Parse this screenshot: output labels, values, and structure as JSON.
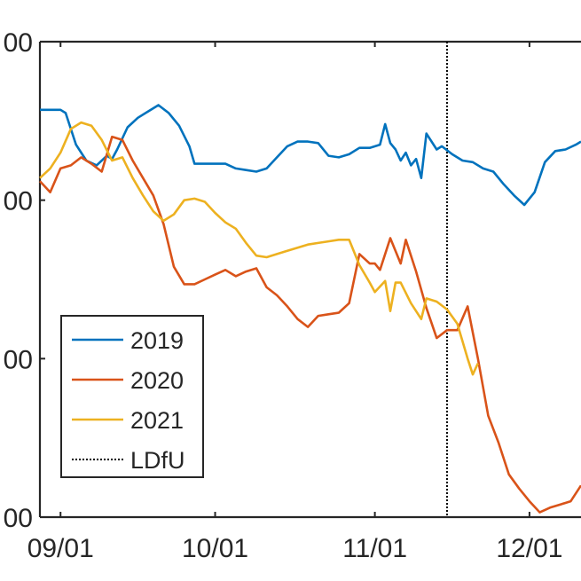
{
  "chart_data": {
    "type": "line",
    "x_tick_labels": [
      "09/01",
      "10/01",
      "11/01",
      "12/01"
    ],
    "x_tick_dates": [
      "2000-09-01",
      "2000-10-01",
      "2000-11-01",
      "2000-12-01"
    ],
    "y_tick_labels": [
      "00",
      "00",
      "00",
      "00"
    ],
    "xlim": [
      "2000-08-28",
      "2000-12-11"
    ],
    "ylim": [
      0,
      3
    ],
    "grid": false,
    "legend_position": "bottom-left",
    "vlines": [
      {
        "name": "LDfU",
        "x": "2000-11-15",
        "color": "#000000",
        "style": "dotted"
      }
    ],
    "series": [
      {
        "name": "2019",
        "color": "#0072BD",
        "points": [
          [
            "2000-08-28",
            2.57
          ],
          [
            "2000-08-30",
            2.57
          ],
          [
            "2000-09-01",
            2.57
          ],
          [
            "2000-09-02",
            2.55
          ],
          [
            "2000-09-04",
            2.35
          ],
          [
            "2000-09-06",
            2.25
          ],
          [
            "2000-09-08",
            2.22
          ],
          [
            "2000-09-10",
            2.28
          ],
          [
            "2000-09-11",
            2.26
          ],
          [
            "2000-09-12",
            2.32
          ],
          [
            "2000-09-14",
            2.46
          ],
          [
            "2000-09-16",
            2.52
          ],
          [
            "2000-09-18",
            2.56
          ],
          [
            "2000-09-20",
            2.6
          ],
          [
            "2000-09-22",
            2.55
          ],
          [
            "2000-09-24",
            2.47
          ],
          [
            "2000-09-26",
            2.34
          ],
          [
            "2000-09-27",
            2.23
          ],
          [
            "2000-09-29",
            2.23
          ],
          [
            "2000-10-01",
            2.23
          ],
          [
            "2000-10-03",
            2.23
          ],
          [
            "2000-10-05",
            2.2
          ],
          [
            "2000-10-07",
            2.19
          ],
          [
            "2000-10-09",
            2.18
          ],
          [
            "2000-10-11",
            2.2
          ],
          [
            "2000-10-13",
            2.27
          ],
          [
            "2000-10-15",
            2.34
          ],
          [
            "2000-10-17",
            2.37
          ],
          [
            "2000-10-19",
            2.37
          ],
          [
            "2000-10-21",
            2.36
          ],
          [
            "2000-10-23",
            2.28
          ],
          [
            "2000-10-25",
            2.27
          ],
          [
            "2000-10-27",
            2.29
          ],
          [
            "2000-10-29",
            2.33
          ],
          [
            "2000-10-31",
            2.33
          ],
          [
            "2000-11-02",
            2.35
          ],
          [
            "2000-11-03",
            2.48
          ],
          [
            "2000-11-04",
            2.36
          ],
          [
            "2000-11-05",
            2.32
          ],
          [
            "2000-11-06",
            2.25
          ],
          [
            "2000-11-07",
            2.3
          ],
          [
            "2000-11-08",
            2.22
          ],
          [
            "2000-11-09",
            2.26
          ],
          [
            "2000-11-10",
            2.14
          ],
          [
            "2000-11-11",
            2.42
          ],
          [
            "2000-11-13",
            2.32
          ],
          [
            "2000-11-14",
            2.34
          ],
          [
            "2000-11-16",
            2.29
          ],
          [
            "2000-11-18",
            2.25
          ],
          [
            "2000-11-20",
            2.24
          ],
          [
            "2000-11-22",
            2.2
          ],
          [
            "2000-11-24",
            2.18
          ],
          [
            "2000-11-26",
            2.1
          ],
          [
            "2000-11-28",
            2.03
          ],
          [
            "2000-11-30",
            1.97
          ],
          [
            "2000-12-02",
            2.05
          ],
          [
            "2000-12-04",
            2.24
          ],
          [
            "2000-12-06",
            2.31
          ],
          [
            "2000-12-08",
            2.32
          ],
          [
            "2000-12-10",
            2.35
          ],
          [
            "2000-12-11",
            2.37
          ]
        ]
      },
      {
        "name": "2020",
        "color": "#D95319",
        "points": [
          [
            "2000-08-28",
            2.12
          ],
          [
            "2000-08-30",
            2.05
          ],
          [
            "2000-09-01",
            2.2
          ],
          [
            "2000-09-03",
            2.22
          ],
          [
            "2000-09-05",
            2.27
          ],
          [
            "2000-09-07",
            2.23
          ],
          [
            "2000-09-09",
            2.18
          ],
          [
            "2000-09-11",
            2.4
          ],
          [
            "2000-09-13",
            2.38
          ],
          [
            "2000-09-15",
            2.25
          ],
          [
            "2000-09-17",
            2.14
          ],
          [
            "2000-09-19",
            2.03
          ],
          [
            "2000-09-21",
            1.85
          ],
          [
            "2000-09-23",
            1.58
          ],
          [
            "2000-09-25",
            1.47
          ],
          [
            "2000-09-27",
            1.47
          ],
          [
            "2000-09-29",
            1.5
          ],
          [
            "2000-10-01",
            1.53
          ],
          [
            "2000-10-03",
            1.56
          ],
          [
            "2000-10-05",
            1.52
          ],
          [
            "2000-10-07",
            1.55
          ],
          [
            "2000-10-09",
            1.57
          ],
          [
            "2000-10-11",
            1.45
          ],
          [
            "2000-10-13",
            1.4
          ],
          [
            "2000-10-15",
            1.33
          ],
          [
            "2000-10-17",
            1.25
          ],
          [
            "2000-10-19",
            1.2
          ],
          [
            "2000-10-21",
            1.27
          ],
          [
            "2000-10-23",
            1.28
          ],
          [
            "2000-10-25",
            1.29
          ],
          [
            "2000-10-27",
            1.35
          ],
          [
            "2000-10-29",
            1.66
          ],
          [
            "2000-10-31",
            1.6
          ],
          [
            "2000-11-01",
            1.6
          ],
          [
            "2000-11-02",
            1.56
          ],
          [
            "2000-11-04",
            1.76
          ],
          [
            "2000-11-06",
            1.6
          ],
          [
            "2000-11-07",
            1.75
          ],
          [
            "2000-11-09",
            1.55
          ],
          [
            "2000-11-11",
            1.32
          ],
          [
            "2000-11-13",
            1.13
          ],
          [
            "2000-11-15",
            1.18
          ],
          [
            "2000-11-17",
            1.18
          ],
          [
            "2000-11-19",
            1.33
          ],
          [
            "2000-11-21",
            1.0
          ],
          [
            "2000-11-23",
            0.64
          ],
          [
            "2000-11-25",
            0.47
          ],
          [
            "2000-11-27",
            0.27
          ],
          [
            "2000-11-29",
            0.18
          ],
          [
            "2000-12-01",
            0.1
          ],
          [
            "2000-12-03",
            0.03
          ],
          [
            "2000-12-05",
            0.06
          ],
          [
            "2000-12-07",
            0.08
          ],
          [
            "2000-12-09",
            0.1
          ],
          [
            "2000-12-11",
            0.2
          ]
        ]
      },
      {
        "name": "2021",
        "color": "#EDB120",
        "points": [
          [
            "2000-08-28",
            2.14
          ],
          [
            "2000-08-30",
            2.2
          ],
          [
            "2000-09-01",
            2.3
          ],
          [
            "2000-09-03",
            2.45
          ],
          [
            "2000-09-05",
            2.49
          ],
          [
            "2000-09-07",
            2.47
          ],
          [
            "2000-09-09",
            2.38
          ],
          [
            "2000-09-11",
            2.25
          ],
          [
            "2000-09-13",
            2.27
          ],
          [
            "2000-09-15",
            2.14
          ],
          [
            "2000-09-17",
            2.03
          ],
          [
            "2000-09-19",
            1.93
          ],
          [
            "2000-09-21",
            1.87
          ],
          [
            "2000-09-23",
            1.91
          ],
          [
            "2000-09-25",
            2.0
          ],
          [
            "2000-09-27",
            2.01
          ],
          [
            "2000-09-29",
            1.99
          ],
          [
            "2000-10-01",
            1.92
          ],
          [
            "2000-10-03",
            1.86
          ],
          [
            "2000-10-05",
            1.82
          ],
          [
            "2000-10-07",
            1.73
          ],
          [
            "2000-10-09",
            1.65
          ],
          [
            "2000-10-11",
            1.64
          ],
          [
            "2000-10-13",
            1.66
          ],
          [
            "2000-10-15",
            1.68
          ],
          [
            "2000-10-17",
            1.7
          ],
          [
            "2000-10-19",
            1.72
          ],
          [
            "2000-10-21",
            1.73
          ],
          [
            "2000-10-23",
            1.74
          ],
          [
            "2000-10-25",
            1.75
          ],
          [
            "2000-10-27",
            1.75
          ],
          [
            "2000-10-29",
            1.59
          ],
          [
            "2000-10-31",
            1.48
          ],
          [
            "2000-11-01",
            1.42
          ],
          [
            "2000-11-03",
            1.49
          ],
          [
            "2000-11-04",
            1.3
          ],
          [
            "2000-11-05",
            1.48
          ],
          [
            "2000-11-06",
            1.48
          ],
          [
            "2000-11-08",
            1.35
          ],
          [
            "2000-11-10",
            1.25
          ],
          [
            "2000-11-11",
            1.38
          ],
          [
            "2000-11-13",
            1.36
          ],
          [
            "2000-11-15",
            1.31
          ],
          [
            "2000-11-17",
            1.22
          ],
          [
            "2000-11-19",
            1.0
          ],
          [
            "2000-11-20",
            0.9
          ],
          [
            "2000-11-21",
            0.97
          ]
        ]
      }
    ]
  }
}
